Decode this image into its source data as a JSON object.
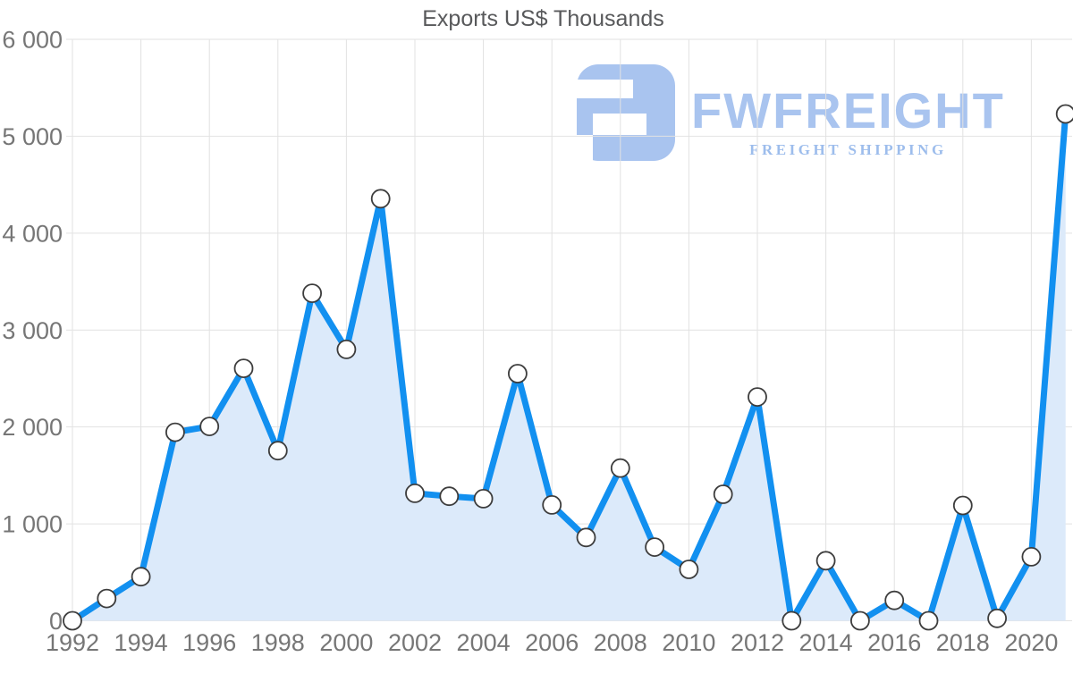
{
  "logo": {
    "name": "FWFREIGHT",
    "tagline": "FREIGHT SHIPPING"
  },
  "colors": {
    "line": "#1290f0",
    "fill": "#dceafa",
    "marker_fill": "#ffffff",
    "marker_stroke": "#3d3d3d",
    "grid": "#e2e2e2",
    "axis_label": "#767676",
    "title": "#58595b",
    "logo_blue": "#a9c4ef",
    "logo_tagline_blue": "#9dbdec"
  },
  "chart_data": {
    "type": "area",
    "title": "Exports US$ Thousands",
    "xlabel": "",
    "ylabel": "",
    "x": [
      1992,
      1993,
      1994,
      1995,
      1996,
      1997,
      1998,
      1999,
      2000,
      2001,
      2002,
      2003,
      2004,
      2005,
      2006,
      2007,
      2008,
      2009,
      2010,
      2011,
      2012,
      2013,
      2014,
      2015,
      2016,
      2017,
      2018,
      2019,
      2020,
      2021
    ],
    "series": [
      {
        "name": "Exports US$ Thousands",
        "values": [
          0,
          230,
          455,
          1945,
          2005,
          2605,
          1755,
          3380,
          2800,
          4355,
          1315,
          1285,
          1260,
          2550,
          1195,
          860,
          1575,
          760,
          530,
          1305,
          2310,
          0,
          620,
          0,
          210,
          0,
          1190,
          25,
          660,
          5230
        ]
      }
    ],
    "xlim": [
      1992,
      2021
    ],
    "ylim": [
      0,
      6000
    ],
    "y_tick_values": [
      0,
      1000,
      2000,
      3000,
      4000,
      5000,
      6000
    ],
    "y_tick_labels": [
      "0",
      "1 000",
      "2 000",
      "3 000",
      "4 000",
      "5 000",
      "6 000"
    ],
    "x_tick_labels": [
      "1992",
      "1994",
      "1996",
      "1998",
      "2000",
      "2002",
      "2004",
      "2006",
      "2008",
      "2010",
      "2012",
      "2014",
      "2016",
      "2018",
      "2020"
    ],
    "grid": true,
    "legend": false,
    "markers": true
  }
}
